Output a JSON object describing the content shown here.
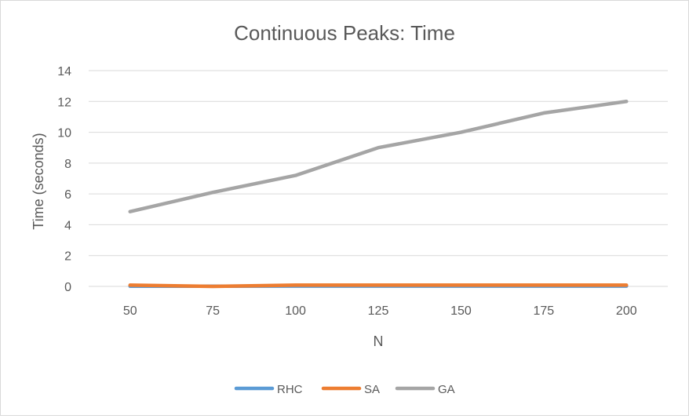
{
  "chart_data": {
    "type": "line",
    "title": "Continuous Peaks: Time",
    "xlabel": "N",
    "ylabel": "Time (seconds)",
    "categories": [
      "50",
      "75",
      "100",
      "125",
      "150",
      "175",
      "200"
    ],
    "ylim": [
      0,
      14
    ],
    "yticks": [
      "0",
      "2",
      "4",
      "6",
      "8",
      "10",
      "12",
      "14"
    ],
    "grid": true,
    "legend_position": "bottom",
    "series": [
      {
        "name": "RHC",
        "color": "#5b9bd5",
        "values": [
          0.01,
          0.01,
          0.02,
          0.02,
          0.02,
          0.02,
          0.02
        ]
      },
      {
        "name": "SA",
        "color": "#ed7d31",
        "values": [
          0.08,
          0.0,
          0.08,
          0.08,
          0.08,
          0.08,
          0.08
        ]
      },
      {
        "name": "GA",
        "color": "#a5a5a5",
        "values": [
          4.85,
          6.1,
          7.2,
          9.0,
          10.0,
          11.25,
          12.0
        ]
      }
    ]
  }
}
